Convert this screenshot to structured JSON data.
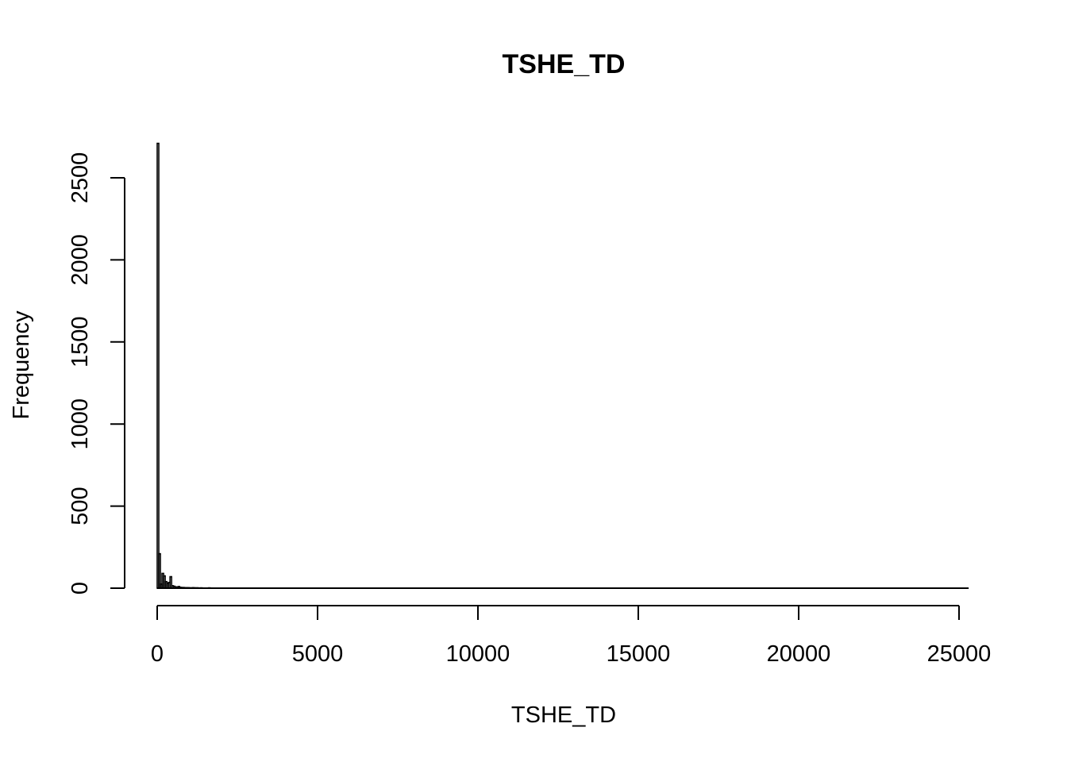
{
  "chart_data": {
    "type": "bar",
    "title": "TSHE_TD",
    "xlabel": "TSHE_TD",
    "ylabel": "Frequency",
    "xlim": [
      0,
      25000
    ],
    "ylim": [
      0,
      2500
    ],
    "grid": false,
    "legend": "none",
    "bin_width": 50,
    "x_ticks": [
      0,
      5000,
      10000,
      15000,
      20000,
      25000
    ],
    "x_tick_labels": [
      "0",
      "5000",
      "10000",
      "15000",
      "20000",
      "25000"
    ],
    "y_ticks": [
      0,
      500,
      1000,
      1500,
      2000,
      2500
    ],
    "y_tick_labels": [
      "0",
      "500",
      "1000",
      "1500",
      "2000",
      "2500"
    ],
    "bins": [
      {
        "start": 0,
        "end": 50,
        "count": 2710
      },
      {
        "start": 50,
        "end": 100,
        "count": 210
      },
      {
        "start": 100,
        "end": 150,
        "count": 25
      },
      {
        "start": 150,
        "end": 200,
        "count": 90
      },
      {
        "start": 200,
        "end": 250,
        "count": 75
      },
      {
        "start": 250,
        "end": 300,
        "count": 40
      },
      {
        "start": 300,
        "end": 350,
        "count": 30
      },
      {
        "start": 350,
        "end": 400,
        "count": 35
      },
      {
        "start": 400,
        "end": 450,
        "count": 70
      },
      {
        "start": 450,
        "end": 500,
        "count": 15
      },
      {
        "start": 500,
        "end": 550,
        "count": 12
      },
      {
        "start": 550,
        "end": 600,
        "count": 8
      },
      {
        "start": 600,
        "end": 650,
        "count": 6
      },
      {
        "start": 650,
        "end": 700,
        "count": 10
      },
      {
        "start": 700,
        "end": 750,
        "count": 5
      },
      {
        "start": 750,
        "end": 800,
        "count": 4
      },
      {
        "start": 800,
        "end": 850,
        "count": 4
      },
      {
        "start": 850,
        "end": 900,
        "count": 3
      },
      {
        "start": 900,
        "end": 950,
        "count": 3
      },
      {
        "start": 950,
        "end": 1000,
        "count": 3
      },
      {
        "start": 1000,
        "end": 1050,
        "count": 2
      },
      {
        "start": 1050,
        "end": 1100,
        "count": 2
      },
      {
        "start": 1100,
        "end": 1150,
        "count": 3
      },
      {
        "start": 1150,
        "end": 1200,
        "count": 2
      },
      {
        "start": 1200,
        "end": 1250,
        "count": 2
      },
      {
        "start": 1250,
        "end": 1300,
        "count": 2
      },
      {
        "start": 1300,
        "end": 1350,
        "count": 1
      },
      {
        "start": 1350,
        "end": 1400,
        "count": 2
      },
      {
        "start": 1400,
        "end": 1450,
        "count": 1
      },
      {
        "start": 1450,
        "end": 1500,
        "count": 1
      },
      {
        "start": 1500,
        "end": 1550,
        "count": 1
      },
      {
        "start": 1550,
        "end": 1600,
        "count": 1
      },
      {
        "start": 1600,
        "end": 1650,
        "count": 2
      },
      {
        "start": 1650,
        "end": 1700,
        "count": 1
      }
    ],
    "x_max": 25300
  }
}
